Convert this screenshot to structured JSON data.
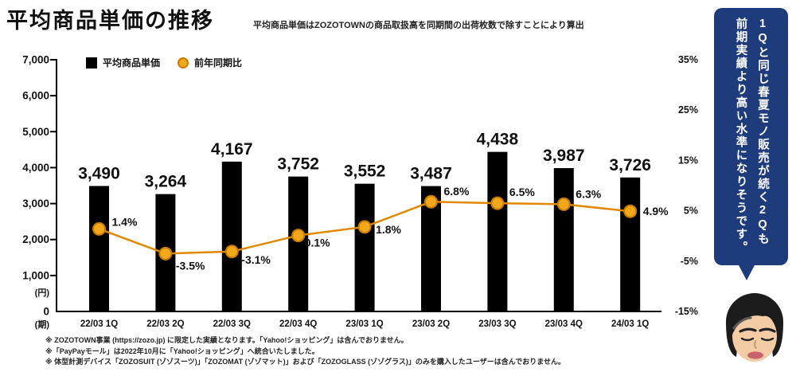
{
  "header": {
    "title": "平均商品単価の推移",
    "subtitle": "平均商品単価はZOZOTOWNの商品取扱高を同期間の出荷枚数で除すことにより算出"
  },
  "legend": [
    {
      "label": "平均商品単価",
      "swatch": "square",
      "color": "#000000"
    },
    {
      "label": "前年同期比",
      "swatch": "circle",
      "color": "#F3A71B"
    }
  ],
  "chart_data": {
    "type": "bar+line",
    "categories": [
      "22/03 1Q",
      "22/03 2Q",
      "22/03 3Q",
      "22/03 4Q",
      "23/03 1Q",
      "23/03 2Q",
      "23/03 3Q",
      "23/03 4Q",
      "24/03 1Q"
    ],
    "series": [
      {
        "name": "平均商品単価",
        "type": "bar",
        "axis": "left",
        "values": [
          3490,
          3264,
          4167,
          3752,
          3552,
          3487,
          4438,
          3987,
          3726
        ],
        "color": "#000000"
      },
      {
        "name": "前年同期比",
        "type": "line",
        "axis": "right",
        "values": [
          1.4,
          -3.5,
          -3.1,
          0.1,
          1.8,
          6.8,
          6.5,
          6.3,
          4.9
        ],
        "color": "#E28800",
        "marker_fill": "#F3A71B",
        "marker_stroke": "#C87D00"
      }
    ],
    "left_axis": {
      "label": "(円)",
      "min": 0,
      "max": 7000,
      "step": 1000,
      "ticks": [
        "7,000",
        "6,000",
        "5,000",
        "4,000",
        "3,000",
        "2,000",
        "1,000",
        "0"
      ]
    },
    "right_axis": {
      "min": -15,
      "max": 35,
      "step": 10,
      "ticks": [
        "35%",
        "25%",
        "15%",
        "5%",
        "-5%",
        "-15%"
      ]
    },
    "x_axis_label": "(期)",
    "grid": false,
    "legend_position": "top-left-inside"
  },
  "callout": {
    "lines": [
      "1Qと同じ春夏モノ販売が続く2Qも",
      "前期実績より高い水準になりそうです。"
    ],
    "bg_color": "#1E3C7C",
    "text_color": "#FFFFFF",
    "avatar_icon": "presenter-face-illustration"
  },
  "footnotes": [
    "※ ZOZOTOWN事業 (https://zozo.jp) に限定した実績となります。「Yahoo!ショッピング」は含んでおりません。",
    "※「PayPayモール」は2022年10月に「Yahoo!ショッピング」へ統合いたしました。",
    "※ 体型計測デバイス「ZOZOSUIT (ゾゾスーツ)」「ZOZOMAT (ゾゾマット)」および「ZOZOGLASS (ゾゾグラス)」のみを購入したユーザーは含んでおりません。"
  ]
}
